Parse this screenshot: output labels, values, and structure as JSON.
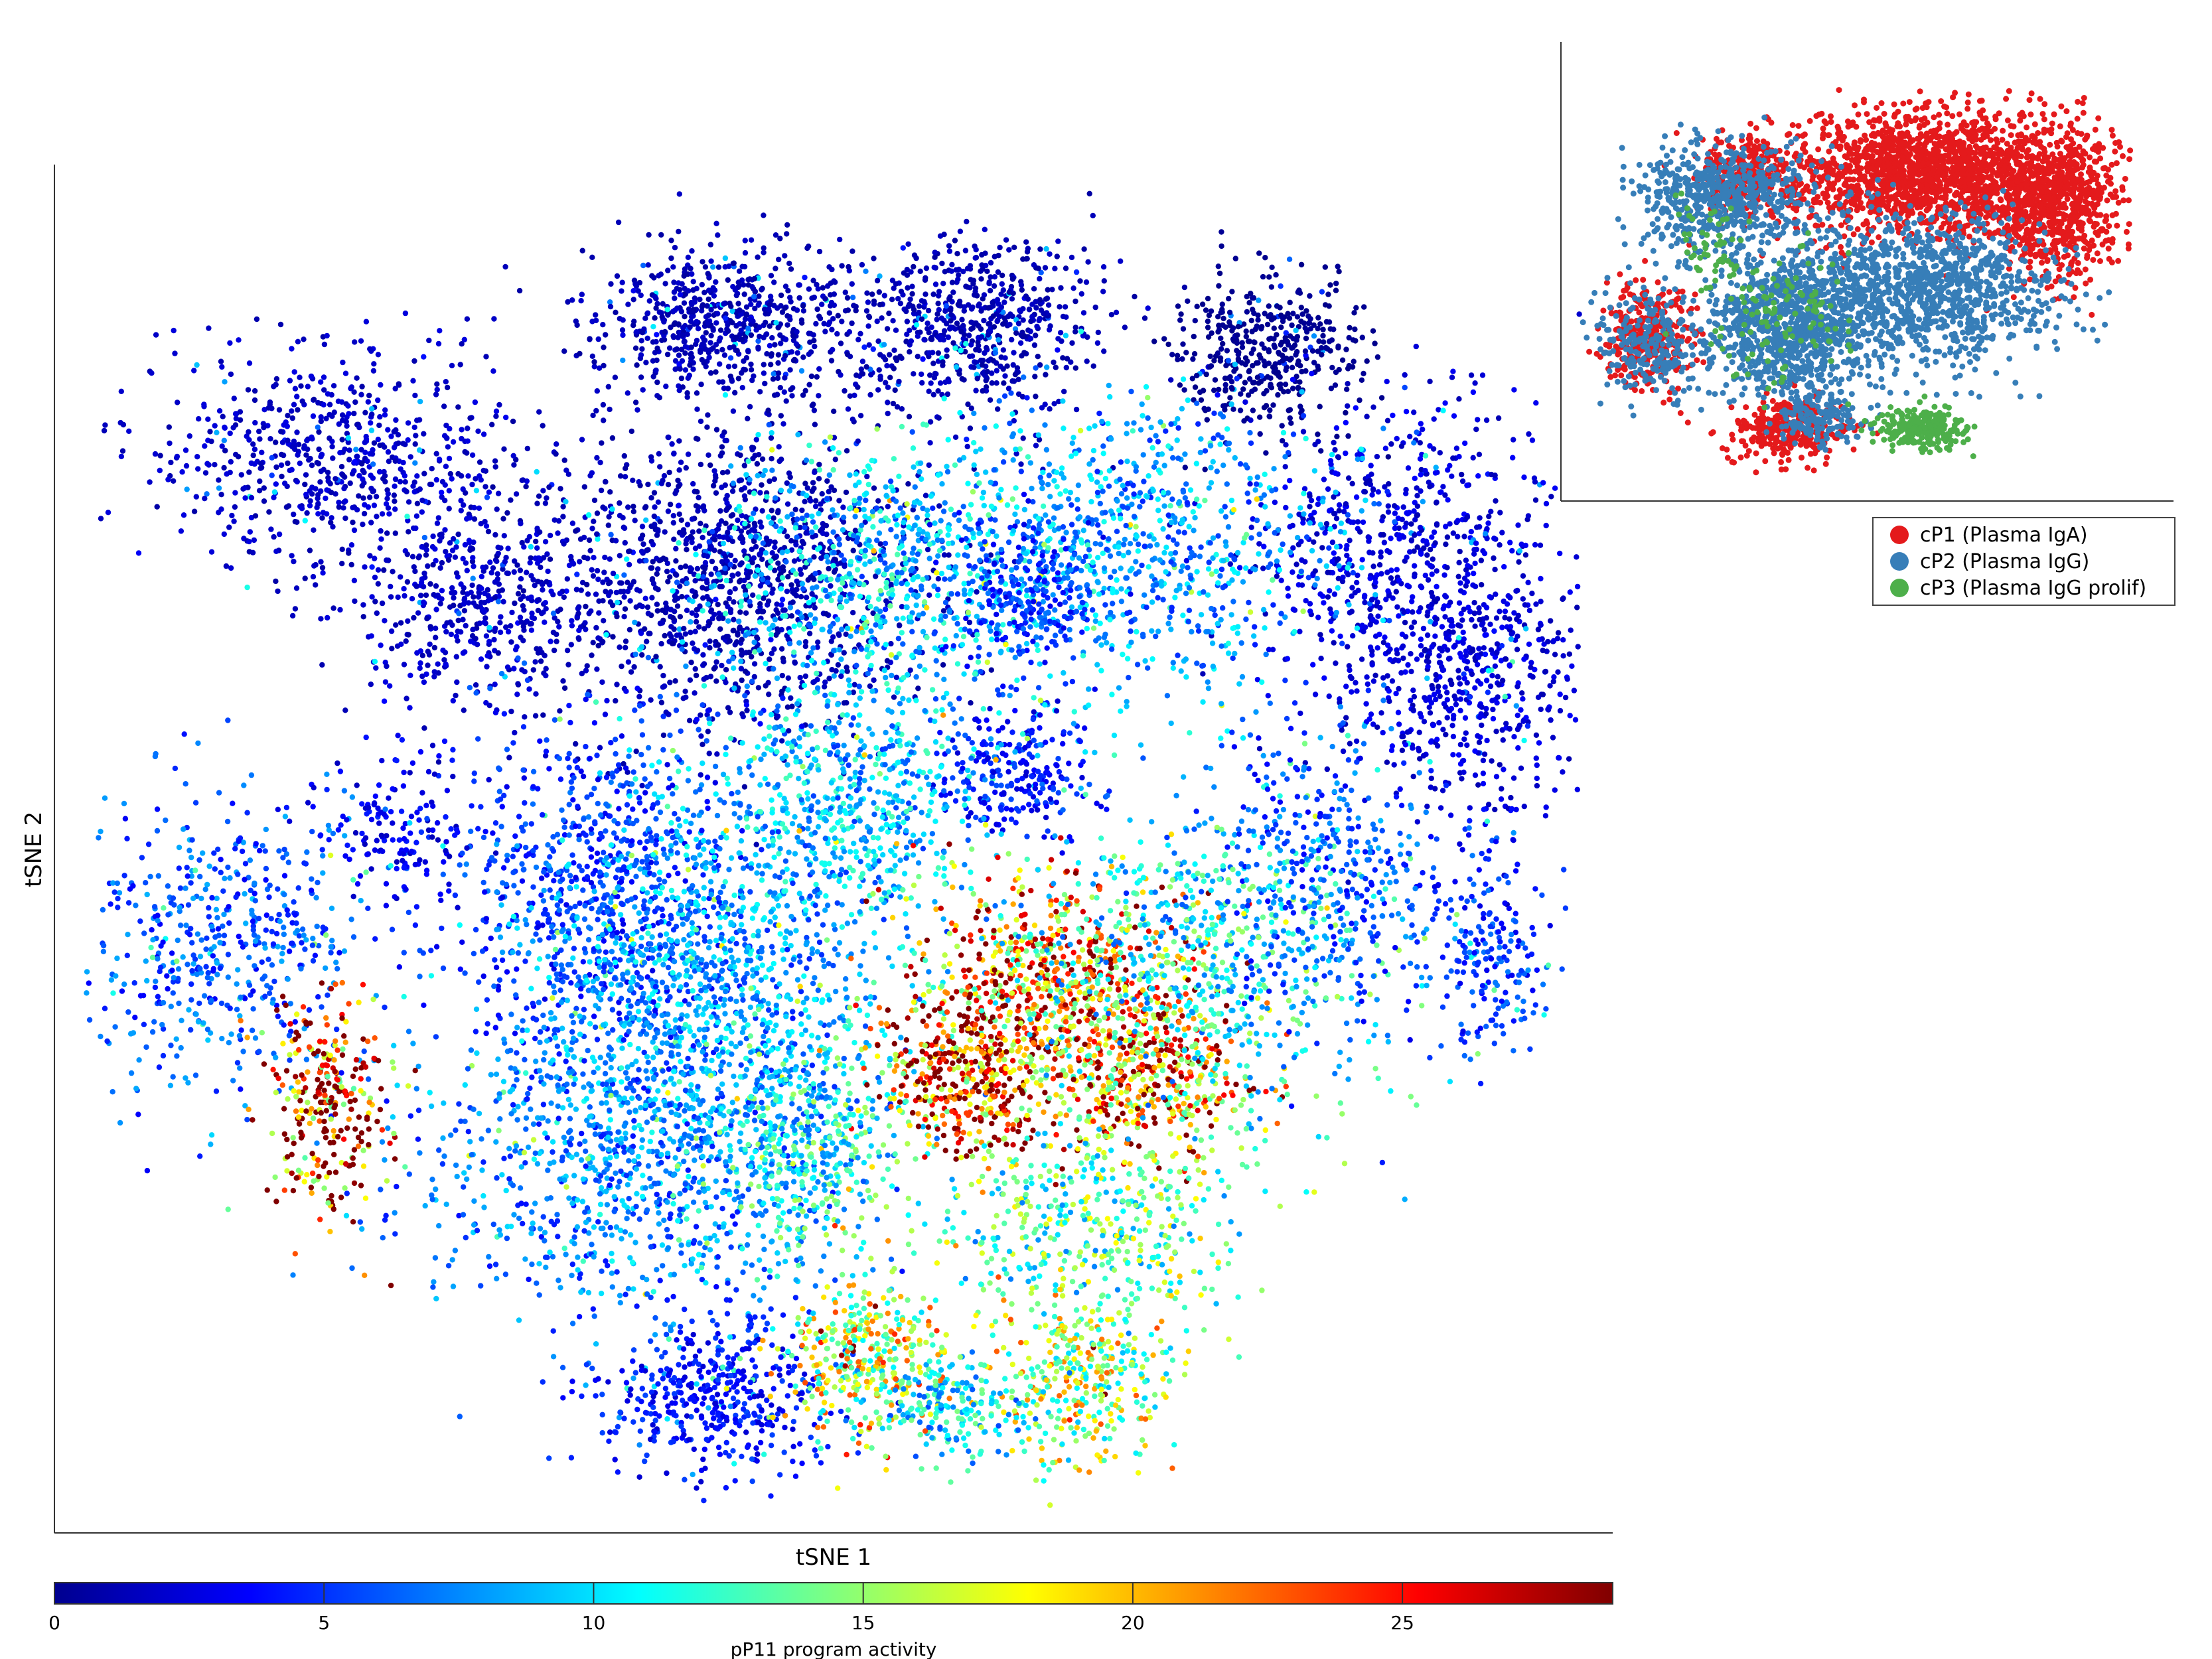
{
  "chart_data": [
    {
      "type": "scatter",
      "title": "",
      "xlabel": "tSNE 1",
      "ylabel": "tSNE 2",
      "xlim": [
        0,
        100
      ],
      "ylim": [
        0,
        100
      ],
      "grid": false,
      "colorbar": {
        "label": "pP11 program activity",
        "range": [
          0,
          28.9
        ],
        "ticks": [
          0,
          5,
          10,
          15,
          20,
          25
        ],
        "tick_labels": [
          "0",
          "5",
          "10",
          "15",
          "20",
          "25"
        ],
        "colormap": "jet"
      },
      "clusters": [
        {
          "x": 43,
          "y": 71,
          "sx": 7,
          "sy": 6,
          "n": 1300,
          "activity": 1.5
        },
        {
          "x": 59,
          "y": 90,
          "sx": 4.5,
          "sy": 3.5,
          "n": 650,
          "activity": 1.5
        },
        {
          "x": 43,
          "y": 90,
          "sx": 4.5,
          "sy": 3,
          "n": 650,
          "activity": 1.5
        },
        {
          "x": 79,
          "y": 88,
          "sx": 3,
          "sy": 3,
          "n": 420,
          "activity": 0.5
        },
        {
          "x": 17,
          "y": 80,
          "sx": 6,
          "sy": 4,
          "n": 650,
          "activity": 2
        },
        {
          "x": 26,
          "y": 69,
          "sx": 4,
          "sy": 4,
          "n": 450,
          "activity": 2
        },
        {
          "x": 88,
          "y": 72,
          "sx": 5,
          "sy": 6,
          "n": 700,
          "activity": 2.5
        },
        {
          "x": 93,
          "y": 62,
          "sx": 4,
          "sy": 5,
          "n": 450,
          "activity": 2.5
        },
        {
          "x": 70,
          "y": 73,
          "sx": 7,
          "sy": 6,
          "n": 900,
          "activity": 8
        },
        {
          "x": 53,
          "y": 71,
          "sx": 6,
          "sy": 5,
          "n": 700,
          "activity": 9
        },
        {
          "x": 63,
          "y": 70,
          "sx": 2.5,
          "sy": 2.5,
          "n": 250,
          "activity": 5
        },
        {
          "x": 62,
          "y": 56,
          "sx": 2.5,
          "sy": 2.5,
          "n": 250,
          "activity": 4
        },
        {
          "x": 51,
          "y": 54,
          "sx": 5,
          "sy": 5,
          "n": 650,
          "activity": 9
        },
        {
          "x": 34,
          "y": 47,
          "sx": 5,
          "sy": 7,
          "n": 800,
          "activity": 5
        },
        {
          "x": 41,
          "y": 40,
          "sx": 6,
          "sy": 7,
          "n": 1100,
          "activity": 8
        },
        {
          "x": 36,
          "y": 26,
          "sx": 7,
          "sy": 6,
          "n": 900,
          "activity": 7
        },
        {
          "x": 48,
          "y": 28,
          "sx": 4,
          "sy": 5,
          "n": 500,
          "activity": 11
        },
        {
          "x": 65,
          "y": 40,
          "sx": 5,
          "sy": 4,
          "n": 700,
          "activity": 21
        },
        {
          "x": 59,
          "y": 33,
          "sx": 3,
          "sy": 3,
          "n": 400,
          "activity": 24
        },
        {
          "x": 71,
          "y": 33,
          "sx": 3.5,
          "sy": 3,
          "n": 400,
          "activity": 22
        },
        {
          "x": 75,
          "y": 42,
          "sx": 6,
          "sy": 6,
          "n": 650,
          "activity": 11
        },
        {
          "x": 68,
          "y": 22,
          "sx": 5,
          "sy": 4,
          "n": 450,
          "activity": 13
        },
        {
          "x": 83,
          "y": 48,
          "sx": 4,
          "sy": 6,
          "n": 450,
          "activity": 6
        },
        {
          "x": 94,
          "y": 42,
          "sx": 2,
          "sy": 4,
          "n": 200,
          "activity": 5
        },
        {
          "x": 42,
          "y": 9,
          "sx": 4,
          "sy": 3,
          "n": 450,
          "activity": 4
        },
        {
          "x": 52,
          "y": 12,
          "sx": 3,
          "sy": 3,
          "n": 350,
          "activity": 17
        },
        {
          "x": 67,
          "y": 10,
          "sx": 3,
          "sy": 3,
          "n": 350,
          "activity": 16
        },
        {
          "x": 58,
          "y": 8,
          "sx": 3,
          "sy": 2,
          "n": 200,
          "activity": 10
        },
        {
          "x": 9,
          "y": 43,
          "sx": 5,
          "sy": 6,
          "n": 550,
          "activity": 6
        },
        {
          "x": 16,
          "y": 31,
          "sx": 2,
          "sy": 4,
          "n": 280,
          "activity": 24
        },
        {
          "x": 21,
          "y": 52,
          "sx": 2.5,
          "sy": 3,
          "n": 150,
          "activity": 3
        }
      ]
    },
    {
      "type": "scatter",
      "title": "",
      "xlabel": "",
      "ylabel": "",
      "legend_position": "below",
      "series": [
        {
          "name": "cP1 (Plasma IgA)",
          "color": "#e41a1c"
        },
        {
          "name": "cP2 (Plasma IgG)",
          "color": "#377eb8"
        },
        {
          "name": "cP3 (Plasma IgG prolif)",
          "color": "#4daf4a"
        }
      ],
      "clusters": [
        {
          "series": 0,
          "x": 63,
          "y": 78,
          "sx": 14,
          "sy": 8,
          "n": 1800
        },
        {
          "series": 0,
          "x": 86,
          "y": 70,
          "sx": 6,
          "sy": 10,
          "n": 700
        },
        {
          "series": 0,
          "x": 12,
          "y": 36,
          "sx": 4,
          "sy": 7,
          "n": 300
        },
        {
          "series": 0,
          "x": 38,
          "y": 12,
          "sx": 5,
          "sy": 4,
          "n": 300
        },
        {
          "series": 0,
          "x": 30,
          "y": 78,
          "sx": 4,
          "sy": 5,
          "n": 250
        },
        {
          "series": 1,
          "x": 25,
          "y": 72,
          "sx": 8,
          "sy": 7,
          "n": 600
        },
        {
          "series": 1,
          "x": 38,
          "y": 38,
          "sx": 8,
          "sy": 9,
          "n": 900
        },
        {
          "series": 1,
          "x": 62,
          "y": 48,
          "sx": 12,
          "sy": 10,
          "n": 1100
        },
        {
          "series": 1,
          "x": 12,
          "y": 34,
          "sx": 5,
          "sy": 7,
          "n": 250
        },
        {
          "series": 1,
          "x": 43,
          "y": 14,
          "sx": 4,
          "sy": 3,
          "n": 150
        },
        {
          "series": 2,
          "x": 62,
          "y": 12,
          "sx": 4,
          "sy": 2.5,
          "n": 250
        },
        {
          "series": 2,
          "x": 36,
          "y": 40,
          "sx": 7,
          "sy": 9,
          "n": 120
        },
        {
          "series": 2,
          "x": 23,
          "y": 60,
          "sx": 3,
          "sy": 5,
          "n": 50
        }
      ]
    }
  ]
}
